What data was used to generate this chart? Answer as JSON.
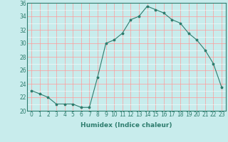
{
  "x": [
    0,
    1,
    2,
    3,
    4,
    5,
    6,
    7,
    8,
    9,
    10,
    11,
    12,
    13,
    14,
    15,
    16,
    17,
    18,
    19,
    20,
    21,
    22,
    23
  ],
  "y": [
    23,
    22.5,
    22,
    21,
    21,
    21,
    20.5,
    20.5,
    25,
    30,
    30.5,
    31.5,
    33.5,
    34,
    35.5,
    35,
    34.5,
    33.5,
    33,
    31.5,
    30.5,
    29,
    27,
    23.5
  ],
  "line_color": "#2e7d6e",
  "marker": "*",
  "marker_size": 2.5,
  "background_color": "#c8ecec",
  "grid_color_major": "#ff9999",
  "grid_color_minor": "#ffffff",
  "xlabel": "Humidex (Indice chaleur)",
  "xlim": [
    -0.5,
    23.5
  ],
  "ylim": [
    20,
    36
  ],
  "yticks": [
    20,
    22,
    24,
    26,
    28,
    30,
    32,
    34,
    36
  ],
  "xticks": [
    0,
    1,
    2,
    3,
    4,
    5,
    6,
    7,
    8,
    9,
    10,
    11,
    12,
    13,
    14,
    15,
    16,
    17,
    18,
    19,
    20,
    21,
    22,
    23
  ],
  "label_fontsize": 6.5,
  "tick_fontsize": 5.5
}
